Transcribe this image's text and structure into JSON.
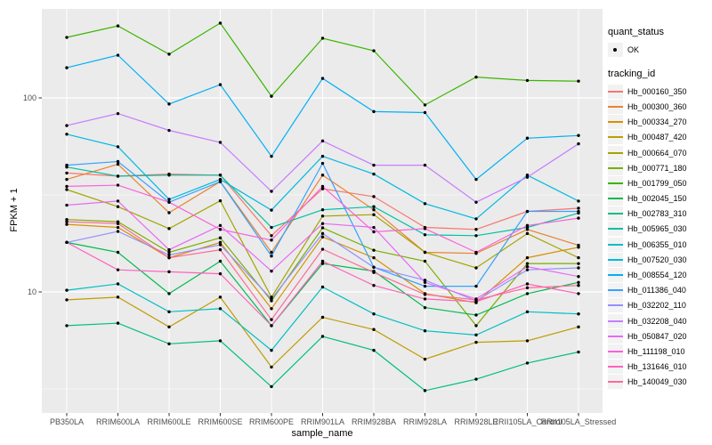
{
  "figure": {
    "background": "#FFFFFF",
    "panel_background": "#EBEBEB",
    "grid_color": "#FFFFFF",
    "axis_text_color": "#4D4D4D",
    "tick_mark_color": "#333333",
    "point_color": "#000000",
    "legend_key_background": "#F2F2F2"
  },
  "axes": {
    "x_title": "sample_name",
    "y_title": "FPKM + 1"
  },
  "legend": {
    "quant_status_title": "quant_status",
    "quant_status_value": "OK",
    "tracking_id_title": "tracking_id"
  },
  "chart_data": {
    "type": "line",
    "title": "",
    "xlabel": "sample_name",
    "ylabel": "FPKM + 1",
    "y_scale": "log10",
    "ylim": [
      2.5,
      290
    ],
    "grid": true,
    "legend_position": "right",
    "marker": "black-point",
    "quant_status": "OK",
    "y_ticks": [
      100,
      10
    ],
    "y_minor_gridlines": [
      316.2,
      31.62,
      3.162
    ],
    "categories": [
      "PB350LA",
      "RRIM600LA",
      "RRIM600LE",
      "RRIM600SE",
      "RRIM600PE",
      "RRIM901LA",
      "RRIM928BA",
      "RRIM928LA",
      "RRIM928LE",
      "RRII105LA_Control",
      "RRII105LA_Stressed"
    ],
    "series": [
      {
        "name": "Hb_000160_350",
        "color": "#F8766D",
        "values": [
          41,
          39.5,
          40.5,
          40,
          19.5,
          34,
          31,
          21.5,
          21,
          26,
          27
        ]
      },
      {
        "name": "Hb_000300_360",
        "color": "#EA8331",
        "values": [
          38,
          45.5,
          25.6,
          37,
          16,
          40,
          26.5,
          16,
          15.8,
          21,
          17.4
        ]
      },
      {
        "name": "Hb_000334_270",
        "color": "#D89000",
        "values": [
          22.3,
          21.5,
          15,
          18,
          8.2,
          19.2,
          15,
          9.8,
          8.8,
          15,
          17
        ]
      },
      {
        "name": "Hb_000487_420",
        "color": "#C09B00",
        "values": [
          9.1,
          9.4,
          6.6,
          9.4,
          4.1,
          7.4,
          6.4,
          4.5,
          5.5,
          5.6,
          6.6
        ]
      },
      {
        "name": "Hb_000664_070",
        "color": "#A3A500",
        "values": [
          33.7,
          27.5,
          21.2,
          29.5,
          9.4,
          24.6,
          25,
          16,
          13.3,
          20,
          15
        ]
      },
      {
        "name": "Hb_000771_180",
        "color": "#7CAE00",
        "values": [
          23.6,
          23,
          16,
          19,
          9,
          21.4,
          16.4,
          14.4,
          6.7,
          14,
          14
        ]
      },
      {
        "name": "Hb_001799_050",
        "color": "#39B600",
        "values": [
          205,
          235,
          168,
          243,
          102,
          203,
          175,
          92,
          128,
          123,
          122
        ]
      },
      {
        "name": "Hb_002045_150",
        "color": "#00BB4E",
        "values": [
          18,
          16,
          9.8,
          14.4,
          6.7,
          14,
          12.8,
          8.3,
          7.6,
          9.8,
          11.2
        ]
      },
      {
        "name": "Hb_002783_310",
        "color": "#00BF7D",
        "values": [
          6.7,
          6.9,
          5.4,
          5.6,
          3.25,
          5.9,
          5,
          3.1,
          3.55,
          4.3,
          4.9
        ]
      },
      {
        "name": "Hb_005965_030",
        "color": "#00C1A3",
        "values": [
          44,
          39.5,
          40,
          40,
          21.5,
          26.5,
          27.5,
          19.7,
          19.5,
          21.5,
          25.5
        ]
      },
      {
        "name": "Hb_006355_010",
        "color": "#00BFC4",
        "values": [
          10.2,
          11,
          7.9,
          8.2,
          5,
          10.6,
          7.7,
          6.3,
          6,
          7.9,
          7.7
        ]
      },
      {
        "name": "Hb_007520_030",
        "color": "#00BAE0",
        "values": [
          65,
          56,
          30,
          38,
          26.4,
          50,
          40.5,
          28.5,
          23.8,
          40,
          29.4
        ]
      },
      {
        "name": "Hb_008554_120",
        "color": "#00B0F6",
        "values": [
          143,
          166,
          93,
          117,
          50,
          126,
          85,
          84,
          38,
          62,
          64
        ]
      },
      {
        "name": "Hb_011386_040",
        "color": "#35A2FF",
        "values": [
          45,
          47,
          29,
          37,
          15.3,
          46,
          13.4,
          10.7,
          10.7,
          26,
          26
        ]
      },
      {
        "name": "Hb_032202_110",
        "color": "#9590FF",
        "values": [
          18,
          20.5,
          15.5,
          17.5,
          9.2,
          20,
          13.4,
          11.5,
          9,
          13,
          13.3
        ]
      },
      {
        "name": "Hb_032208_040",
        "color": "#C77CFF",
        "values": [
          72,
          83,
          68,
          59,
          33,
          60,
          45,
          45,
          29,
          39,
          58
        ]
      },
      {
        "name": "Hb_050847_020",
        "color": "#E76BF3",
        "values": [
          28,
          29.4,
          16.5,
          22,
          12.8,
          22.5,
          21.5,
          11.2,
          9.2,
          13.5,
          12
        ]
      },
      {
        "name": "Hb_111198_010",
        "color": "#FA62DB",
        "values": [
          35,
          35.5,
          29,
          21,
          18.5,
          35,
          20.4,
          21.2,
          16,
          22,
          24
        ]
      },
      {
        "name": "Hb_131646_010",
        "color": "#FF62BC",
        "values": [
          18,
          13,
          12.7,
          12.4,
          6.7,
          14.4,
          10.8,
          9.2,
          8.9,
          11,
          9.8
        ]
      },
      {
        "name": "Hb_140049_030",
        "color": "#FF6A98",
        "values": [
          23,
          22.5,
          15,
          16.5,
          7.2,
          16.6,
          12.6,
          9.7,
          9.1,
          10.5,
          10.8
        ]
      }
    ]
  }
}
